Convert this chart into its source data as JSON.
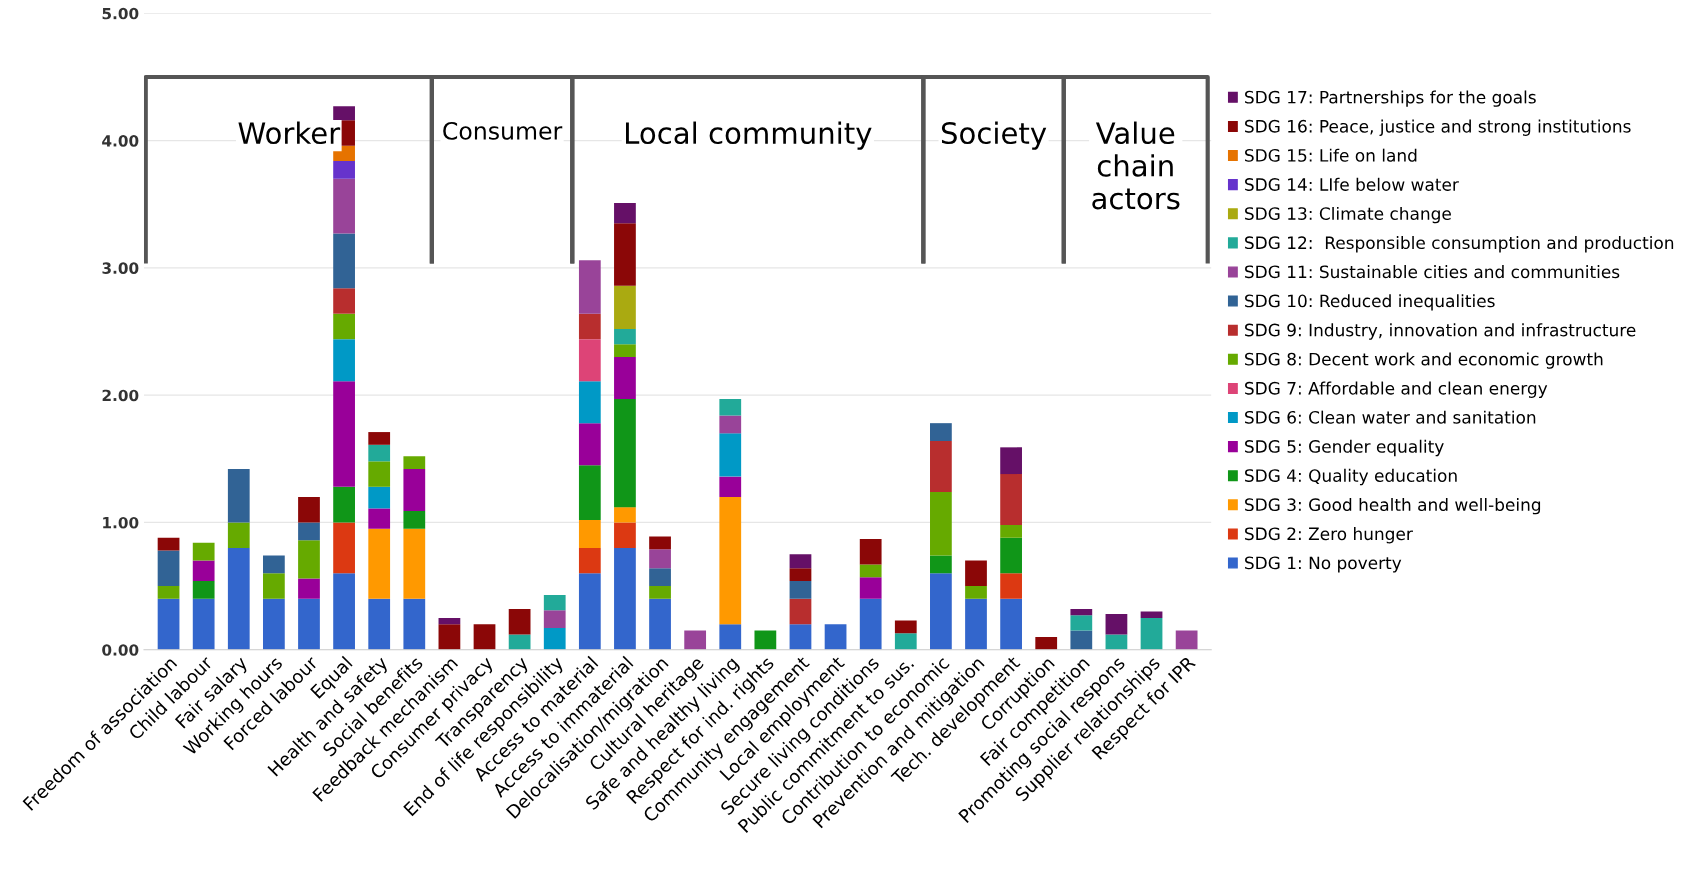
{
  "chart_data": {
    "type": "bar",
    "stacked": true,
    "categories": [
      "Freedom of association",
      "Child labour",
      "Fair salary",
      "Working hours",
      "Forced labour",
      "Equal",
      "Health and safety",
      "Social benefits",
      "Feedback mechanism",
      "Consumer privacy",
      "Transparency",
      "End of life responsibility",
      "Access to material",
      "Access to immaterial",
      "Delocalisation/migration",
      "Cultural heritage",
      "Safe and healthy living",
      "Respect for ind. rights",
      "Community engagement",
      "Local employment",
      "Secure living conditions",
      "Public commitment to sus.",
      "Contribution to economic",
      "Prevention and mitigation",
      "Tech. development",
      "Corruption",
      "Fair competition",
      "Promoting social respons",
      "Supplier relationships",
      "Respect for IPR"
    ],
    "series": [
      {
        "name": "SDG 1: No poverty",
        "color": "#3366cc",
        "values": [
          0.4,
          0.4,
          0.8,
          0.4,
          0.4,
          0.6,
          0.4,
          0.4,
          null,
          null,
          null,
          null,
          0.6,
          0.8,
          0.4,
          null,
          0.2,
          null,
          0.2,
          0.2,
          0.4,
          null,
          0.6,
          0.4,
          0.4,
          null,
          null,
          null,
          null,
          null
        ]
      },
      {
        "name": "SDG 2: Zero hunger",
        "color": "#dc3912",
        "values": [
          null,
          null,
          null,
          null,
          null,
          0.4,
          null,
          null,
          null,
          null,
          null,
          null,
          0.2,
          0.2,
          null,
          null,
          null,
          null,
          null,
          null,
          null,
          null,
          null,
          null,
          0.2,
          null,
          null,
          null,
          null,
          null
        ]
      },
      {
        "name": "SDG 3: Good health and well-being",
        "color": "#ff9900",
        "values": [
          null,
          null,
          null,
          null,
          null,
          null,
          0.55,
          0.55,
          null,
          null,
          null,
          null,
          0.22,
          0.12,
          null,
          null,
          1.0,
          null,
          null,
          null,
          null,
          null,
          null,
          null,
          null,
          null,
          null,
          null,
          null,
          null
        ]
      },
      {
        "name": "SDG 4: Quality education",
        "color": "#109618",
        "values": [
          null,
          0.14,
          null,
          null,
          null,
          0.28,
          null,
          0.14,
          null,
          null,
          null,
          null,
          0.43,
          0.85,
          null,
          null,
          null,
          0.15,
          null,
          null,
          null,
          null,
          0.14,
          null,
          0.28,
          null,
          null,
          null,
          null,
          null
        ]
      },
      {
        "name": "SDG 5: Gender equality",
        "color": "#990099",
        "values": [
          null,
          0.16,
          null,
          null,
          0.16,
          0.83,
          0.16,
          0.33,
          null,
          null,
          null,
          null,
          0.33,
          0.33,
          null,
          null,
          0.16,
          null,
          null,
          null,
          0.17,
          null,
          null,
          null,
          null,
          null,
          null,
          null,
          null,
          null
        ]
      },
      {
        "name": "SDG 6: Clean water and sanitation",
        "color": "#0099c6",
        "values": [
          null,
          null,
          null,
          null,
          null,
          0.33,
          0.17,
          null,
          null,
          null,
          null,
          0.17,
          0.33,
          null,
          null,
          null,
          0.34,
          null,
          null,
          null,
          null,
          null,
          null,
          null,
          null,
          null,
          null,
          null,
          null,
          null
        ]
      },
      {
        "name": "SDG 7: Affordable and clean energy",
        "color": "#dd4477",
        "values": [
          null,
          null,
          null,
          null,
          null,
          null,
          null,
          null,
          null,
          null,
          null,
          null,
          0.33,
          null,
          null,
          null,
          null,
          null,
          null,
          null,
          null,
          null,
          null,
          null,
          null,
          null,
          null,
          null,
          null,
          null
        ]
      },
      {
        "name": "SDG 8: Decent work and economic growth",
        "color": "#66aa00",
        "values": [
          0.1,
          0.14,
          0.2,
          0.2,
          0.3,
          0.2,
          0.2,
          0.1,
          null,
          null,
          null,
          null,
          null,
          0.1,
          0.1,
          null,
          null,
          null,
          null,
          null,
          0.1,
          null,
          0.5,
          0.1,
          0.1,
          null,
          null,
          null,
          null,
          null
        ]
      },
      {
        "name": "SDG 9: Industry, innovation and infrastructure",
        "color": "#b82e2e",
        "values": [
          null,
          null,
          null,
          null,
          null,
          0.2,
          null,
          null,
          null,
          null,
          null,
          null,
          0.2,
          null,
          null,
          null,
          null,
          null,
          0.2,
          null,
          null,
          null,
          0.4,
          null,
          0.4,
          null,
          null,
          null,
          null,
          null
        ]
      },
      {
        "name": "SDG 10: Reduced inequalities",
        "color": "#316395",
        "values": [
          0.28,
          null,
          0.42,
          0.14,
          0.14,
          0.43,
          null,
          null,
          null,
          null,
          null,
          null,
          null,
          null,
          0.14,
          null,
          null,
          null,
          0.14,
          null,
          null,
          null,
          0.14,
          null,
          null,
          null,
          0.15,
          null,
          null,
          null
        ]
      },
      {
        "name": "SDG 11: Sustainable cities and communities",
        "color": "#994499",
        "values": [
          null,
          null,
          null,
          null,
          null,
          0.43,
          null,
          null,
          null,
          null,
          null,
          0.14,
          0.42,
          null,
          0.15,
          0.15,
          0.14,
          null,
          null,
          null,
          null,
          null,
          null,
          null,
          null,
          null,
          null,
          null,
          null,
          0.15
        ]
      },
      {
        "name": "SDG 12:  Responsible consumption and production",
        "color": "#22aa99",
        "values": [
          null,
          null,
          null,
          null,
          null,
          null,
          0.13,
          null,
          null,
          null,
          0.12,
          0.12,
          null,
          0.12,
          null,
          null,
          0.13,
          null,
          null,
          null,
          null,
          0.13,
          null,
          null,
          null,
          null,
          0.12,
          0.12,
          0.25,
          null
        ]
      },
      {
        "name": "SDG 13: Climate change",
        "color": "#aaaa11",
        "values": [
          null,
          null,
          null,
          null,
          null,
          null,
          null,
          null,
          null,
          null,
          null,
          null,
          null,
          0.34,
          null,
          null,
          null,
          null,
          null,
          null,
          null,
          null,
          null,
          null,
          null,
          null,
          null,
          null,
          null,
          null
        ]
      },
      {
        "name": "SDG 14: LIfe below water",
        "color": "#6633cc",
        "values": [
          null,
          null,
          null,
          null,
          null,
          0.14,
          null,
          null,
          null,
          null,
          null,
          null,
          null,
          null,
          null,
          null,
          null,
          null,
          null,
          null,
          null,
          null,
          null,
          null,
          null,
          null,
          null,
          null,
          null,
          null
        ]
      },
      {
        "name": "SDG 15: Life on land",
        "color": "#e67300",
        "values": [
          null,
          null,
          null,
          null,
          null,
          0.12,
          null,
          null,
          null,
          null,
          null,
          null,
          null,
          null,
          null,
          null,
          null,
          null,
          null,
          null,
          null,
          null,
          null,
          null,
          null,
          null,
          null,
          null,
          null,
          null
        ]
      },
      {
        "name": "SDG 16: Peace, justice and strong institutions",
        "color": "#8b0707",
        "values": [
          0.1,
          null,
          null,
          null,
          0.2,
          0.2,
          0.1,
          null,
          0.2,
          0.2,
          0.2,
          null,
          null,
          0.49,
          0.1,
          null,
          null,
          null,
          0.1,
          null,
          0.2,
          0.1,
          null,
          0.2,
          null,
          0.1,
          null,
          null,
          null,
          null
        ]
      },
      {
        "name": "SDG 17: Partnerships for the goals",
        "color": "#651067",
        "values": [
          null,
          null,
          null,
          null,
          null,
          0.11,
          null,
          null,
          0.05,
          null,
          null,
          null,
          null,
          0.16,
          null,
          null,
          null,
          null,
          0.11,
          null,
          null,
          null,
          null,
          null,
          0.21,
          null,
          0.05,
          0.16,
          0.05,
          null
        ]
      }
    ],
    "ylim": [
      0,
      5
    ],
    "yticks": [
      {
        "value": 0,
        "label": "0.00"
      },
      {
        "value": 1,
        "label": "1.00"
      },
      {
        "value": 2,
        "label": "2.00"
      },
      {
        "value": 3,
        "label": "3.00"
      },
      {
        "value": 4,
        "label": "4.00"
      },
      {
        "value": 5,
        "label": "5.00"
      }
    ],
    "grid": "y",
    "legend": "right",
    "annotations": [
      "Worker",
      "Consumer",
      "Local community",
      "Society",
      "Value chain actors"
    ]
  }
}
